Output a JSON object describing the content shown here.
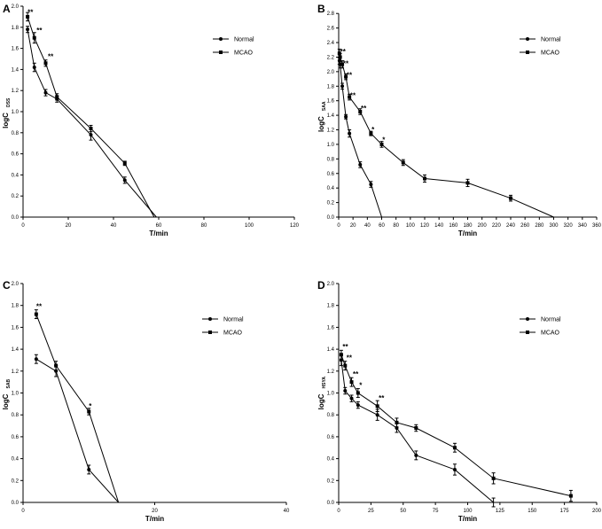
{
  "chart_data": [
    {
      "type": "line",
      "panel_label": "A",
      "xlabel": "T/min",
      "ylabel_main": "logC",
      "ylabel_sub": "DSS",
      "xlim": [
        0,
        120
      ],
      "ylim": [
        0,
        2.0
      ],
      "xticks": [
        0,
        20,
        40,
        60,
        80,
        100,
        120
      ],
      "yticks": [
        0.0,
        0.2,
        0.4,
        0.6,
        0.8,
        1.0,
        1.2,
        1.4,
        1.6,
        1.8,
        2.0
      ],
      "ytick_labels": [
        "0.0",
        "0.2",
        "0.4",
        "0.6",
        "0.8",
        "1.0",
        "1.2",
        "1.4",
        "1.6",
        "1.8",
        "2.0"
      ],
      "series": [
        {
          "name": "Normal",
          "marker": "circle",
          "x": [
            2,
            5,
            10,
            15,
            30,
            45,
            59
          ],
          "y": [
            1.78,
            1.42,
            1.18,
            1.12,
            0.78,
            0.35,
            0.0
          ],
          "err": [
            0.03,
            0.04,
            0.03,
            0.03,
            0.05,
            0.03,
            0
          ]
        },
        {
          "name": "MCAO",
          "marker": "square",
          "x": [
            2,
            5,
            10,
            15,
            30,
            45,
            58
          ],
          "y": [
            1.9,
            1.7,
            1.46,
            1.14,
            0.84,
            0.51,
            0.0
          ],
          "err": [
            0.04,
            0.05,
            0.03,
            0.03,
            0.03,
            0.02,
            0
          ]
        }
      ],
      "annotations": [
        {
          "x": 2,
          "y": 1.92,
          "text": "**"
        },
        {
          "x": 6,
          "y": 1.75,
          "text": "**"
        },
        {
          "x": 11,
          "y": 1.5,
          "text": "**"
        }
      ]
    },
    {
      "type": "line",
      "panel_label": "B",
      "xlabel": "T/min",
      "ylabel_main": "logC",
      "ylabel_sub": "SAA",
      "xlim": [
        0,
        360
      ],
      "ylim": [
        0,
        2.9
      ],
      "xticks": [
        0,
        20,
        40,
        60,
        80,
        100,
        120,
        140,
        160,
        180,
        200,
        220,
        240,
        260,
        280,
        300,
        320,
        340,
        360
      ],
      "yticks": [
        0.0,
        0.2,
        0.4,
        0.6,
        0.8,
        1.0,
        1.2,
        1.4,
        1.6,
        1.8,
        2.0,
        2.2,
        2.4,
        2.6,
        2.8
      ],
      "ytick_labels": [
        "0.0",
        "0.2",
        "0.4",
        "0.6",
        "0.8",
        "1.0",
        "1.2",
        "1.4",
        "1.6",
        "1.8",
        "2.0",
        "2.2",
        "2.4",
        "2.6",
        "2.8"
      ],
      "series": [
        {
          "name": "Normal",
          "marker": "circle",
          "x": [
            1,
            2,
            5,
            10,
            15,
            30,
            45,
            60
          ],
          "y": [
            2.15,
            2.1,
            1.8,
            1.38,
            1.15,
            0.72,
            0.45,
            0.0
          ],
          "err": [
            0.05,
            0.05,
            0.04,
            0.03,
            0.05,
            0.04,
            0.04,
            0
          ]
        },
        {
          "name": "MCAO",
          "marker": "square",
          "x": [
            1,
            2,
            5,
            10,
            15,
            30,
            45,
            60,
            90,
            120,
            180,
            240,
            300
          ],
          "y": [
            2.25,
            2.2,
            2.1,
            1.93,
            1.65,
            1.45,
            1.15,
            1.0,
            0.75,
            0.53,
            0.47,
            0.26,
            0.0
          ],
          "err": [
            0.06,
            0.05,
            0.05,
            0.04,
            0.04,
            0.04,
            0.03,
            0.04,
            0.04,
            0.05,
            0.05,
            0.04,
            0
          ]
        }
      ],
      "annotations": [
        {
          "x": 2,
          "y": 2.24,
          "text": "**"
        },
        {
          "x": 6,
          "y": 2.08,
          "text": "**"
        },
        {
          "x": 11,
          "y": 1.92,
          "text": "**"
        },
        {
          "x": 16,
          "y": 1.64,
          "text": "**"
        },
        {
          "x": 31,
          "y": 1.46,
          "text": "**"
        },
        {
          "x": 46,
          "y": 1.17,
          "text": "*"
        },
        {
          "x": 61,
          "y": 1.03,
          "text": "*"
        }
      ]
    },
    {
      "type": "line",
      "panel_label": "C",
      "xlabel": "T/min",
      "ylabel_main": "logC",
      "ylabel_sub": "SAB",
      "xlim": [
        0,
        40
      ],
      "ylim": [
        0,
        2.0
      ],
      "xticks": [
        0,
        20,
        40
      ],
      "yticks": [
        0.0,
        0.2,
        0.4,
        0.6,
        0.8,
        1.0,
        1.2,
        1.4,
        1.6,
        1.8,
        2.0
      ],
      "ytick_labels": [
        "0.0",
        "0.2",
        "0.4",
        "0.6",
        "0.8",
        "1.0",
        "1.2",
        "1.4",
        "1.6",
        "1.8",
        "2.0"
      ],
      "series": [
        {
          "name": "Normal",
          "marker": "circle",
          "x": [
            2,
            5,
            10,
            14.5
          ],
          "y": [
            1.31,
            1.2,
            0.3,
            0.0
          ],
          "err": [
            0.04,
            0.05,
            0.04,
            0
          ]
        },
        {
          "name": "MCAO",
          "marker": "square",
          "x": [
            2,
            5,
            10,
            14.5
          ],
          "y": [
            1.72,
            1.25,
            0.83,
            0.0
          ],
          "err": [
            0.04,
            0.04,
            0.03,
            0
          ]
        }
      ],
      "annotations": [
        {
          "x": 2,
          "y": 1.77,
          "text": "**"
        },
        {
          "x": 10,
          "y": 0.86,
          "text": "*"
        }
      ]
    },
    {
      "type": "line",
      "panel_label": "D",
      "xlabel": "T/min",
      "ylabel_main": "logC",
      "ylabel_sub": "HSYA",
      "xlim": [
        0,
        200
      ],
      "ylim": [
        0,
        2.0
      ],
      "xticks": [
        0,
        25,
        50,
        75,
        100,
        125,
        150,
        175,
        200
      ],
      "yticks": [
        0.0,
        0.2,
        0.4,
        0.6,
        0.8,
        1.0,
        1.2,
        1.4,
        1.6,
        1.8,
        2.0
      ],
      "ytick_labels": [
        "0.0",
        "0.2",
        "0.4",
        "0.6",
        "0.8",
        "1.0",
        "1.2",
        "1.4",
        "1.6",
        "1.8",
        "2.0"
      ],
      "series": [
        {
          "name": "Normal",
          "marker": "circle",
          "x": [
            2,
            5,
            10,
            15,
            30,
            45,
            60,
            90,
            120
          ],
          "y": [
            1.3,
            1.02,
            0.95,
            0.89,
            0.8,
            0.68,
            0.43,
            0.3,
            0.0
          ],
          "err": [
            0.05,
            0.03,
            0.03,
            0.03,
            0.05,
            0.04,
            0.04,
            0.05,
            0.04
          ]
        },
        {
          "name": "MCAO",
          "marker": "square",
          "x": [
            2,
            5,
            10,
            15,
            30,
            45,
            60,
            90,
            120,
            180
          ],
          "y": [
            1.35,
            1.25,
            1.1,
            1.0,
            0.88,
            0.73,
            0.68,
            0.5,
            0.22,
            0.06
          ],
          "err": [
            0.04,
            0.04,
            0.04,
            0.04,
            0.05,
            0.04,
            0.03,
            0.04,
            0.05,
            0.05
          ]
        }
      ],
      "annotations": [
        {
          "x": 3,
          "y": 1.4,
          "text": "**"
        },
        {
          "x": 6,
          "y": 1.3,
          "text": "**"
        },
        {
          "x": 11,
          "y": 1.15,
          "text": "**"
        },
        {
          "x": 16,
          "y": 1.05,
          "text": "*"
        },
        {
          "x": 31,
          "y": 0.93,
          "text": "**"
        }
      ]
    }
  ]
}
